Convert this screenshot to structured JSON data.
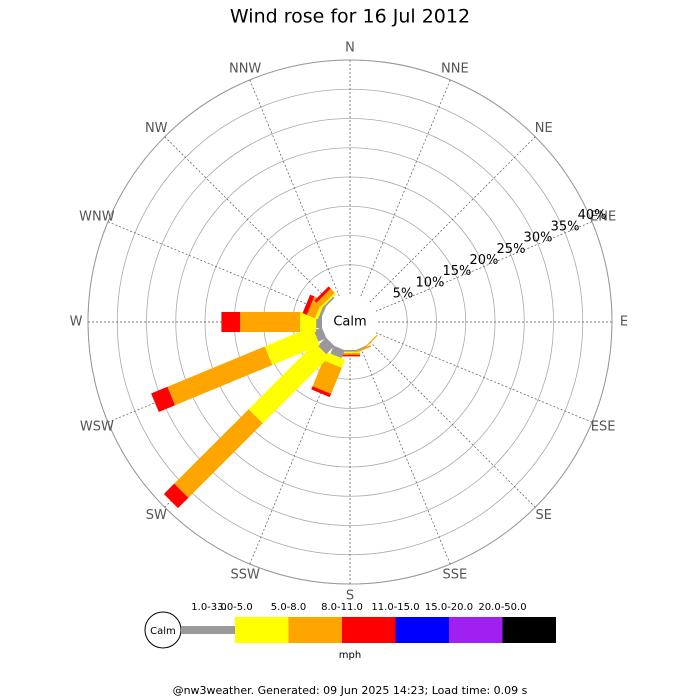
{
  "chart_data": {
    "type": "wind-rose",
    "title": "Wind rose for 16 Jul 2012",
    "calm_label": "Calm",
    "unit_label": "mph",
    "footer": "@nw3weather. Generated: 09 Jun 2025 14:23; Load time: 0.09 s",
    "categories": [
      "N",
      "NNE",
      "NE",
      "ENE",
      "E",
      "ESE",
      "SE",
      "SSE",
      "S",
      "SSW",
      "SW",
      "WSW",
      "W",
      "WNW",
      "NW",
      "NNW"
    ],
    "rlim": [
      0,
      40
    ],
    "rticks": [
      {
        "value": 5,
        "label": "5%"
      },
      {
        "value": 10,
        "label": "10%"
      },
      {
        "value": 15,
        "label": "15%"
      },
      {
        "value": 20,
        "label": "20%"
      },
      {
        "value": 25,
        "label": "25%"
      },
      {
        "value": 30,
        "label": "30%"
      },
      {
        "value": 35,
        "label": "35%"
      },
      {
        "value": 40,
        "label": "40%"
      }
    ],
    "series": [
      {
        "name": "1.0-3.0",
        "color": "#999999",
        "values": [
          0,
          0,
          0,
          0,
          0,
          0,
          0,
          0.2,
          0.3,
          1.5,
          2,
          1.5,
          1,
          0.5,
          0.3,
          0
        ]
      },
      {
        "name": "3.0-5.0",
        "color": "#ffff00",
        "values": [
          0,
          0,
          0,
          0,
          0,
          0,
          0,
          0,
          0.2,
          1.5,
          16,
          8.8,
          2.75,
          0.5,
          0.3,
          0
        ]
      },
      {
        "name": "5.0-8.0",
        "color": "#ffa500",
        "values": [
          0,
          0,
          0,
          0,
          0,
          0,
          0.2,
          0.3,
          0.3,
          4.8,
          18,
          18,
          10.25,
          1.5,
          1,
          0
        ]
      },
      {
        "name": "8.0-11.0",
        "color": "#ff0000",
        "values": [
          0,
          0,
          0,
          0,
          0,
          0,
          0,
          0,
          0.3,
          0.6,
          2.5,
          3,
          3.2,
          0.8,
          0.5,
          0
        ]
      },
      {
        "name": "11.0-15.0",
        "color": "#0000ff",
        "values": [
          0,
          0,
          0,
          0,
          0,
          0,
          0,
          0,
          0,
          0,
          0,
          0,
          0,
          0,
          0,
          0
        ]
      },
      {
        "name": "15.0-20.0",
        "color": "#a020f0",
        "values": [
          0,
          0,
          0,
          0,
          0,
          0,
          0,
          0,
          0,
          0,
          0,
          0,
          0,
          0,
          0,
          0
        ]
      },
      {
        "name": "20.0-50.0",
        "color": "#000000",
        "values": [
          0,
          0,
          0,
          0,
          0,
          0,
          0,
          0,
          0,
          0,
          0,
          0,
          0,
          0,
          0,
          0
        ]
      }
    ]
  }
}
